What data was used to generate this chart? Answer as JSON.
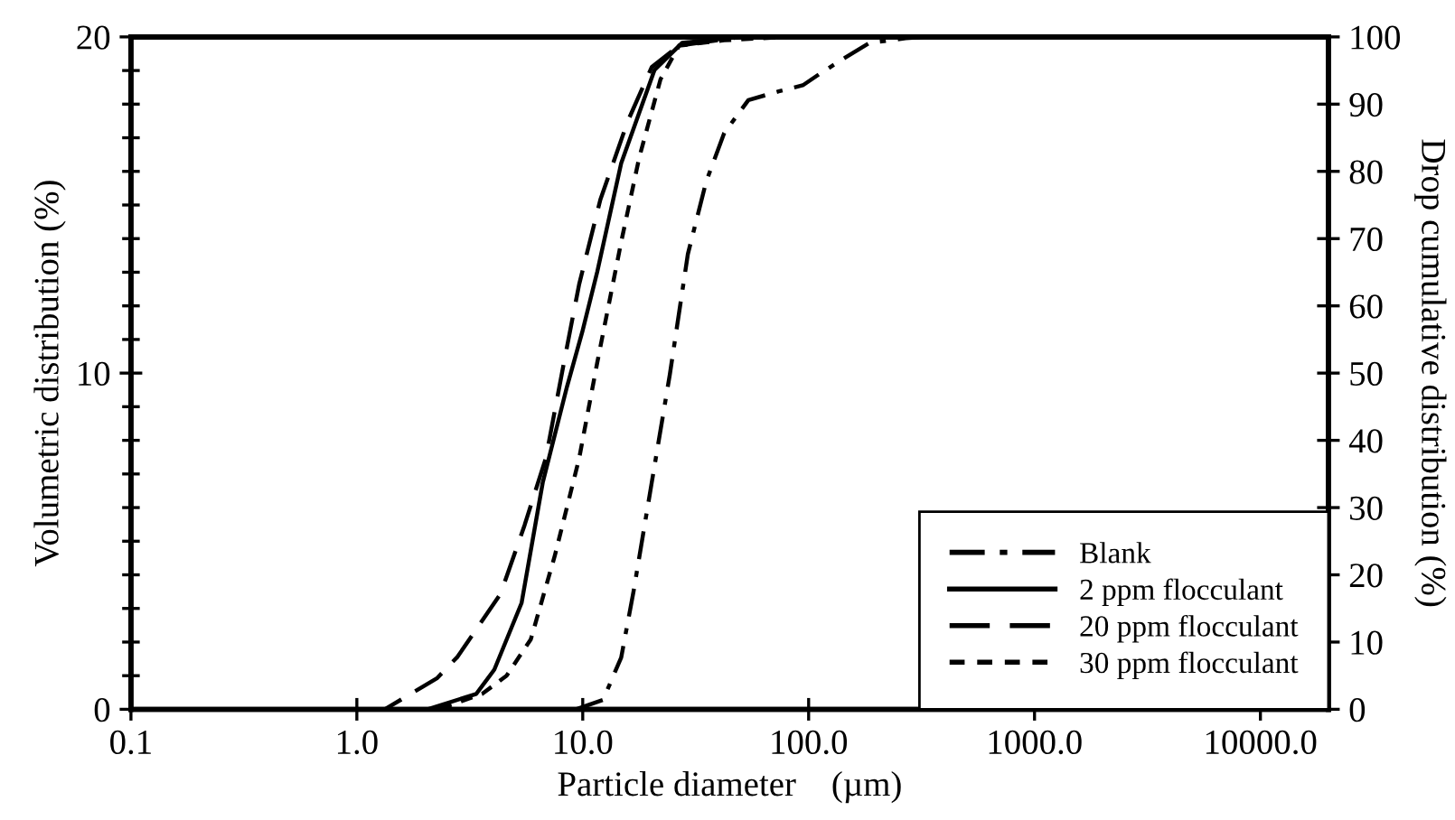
{
  "chart_data": {
    "type": "line",
    "xlabel": "Particle diameter    (µm)",
    "ylabel": "Volumetric distribution (%)",
    "y2label": "Drop cumulative distribution (%)",
    "log": "x",
    "xlim": [
      0.1,
      20000
    ],
    "xticks": [
      0.1,
      {
        "value": 1,
        "label": "1.0"
      },
      {
        "value": 10,
        "label": "10.0"
      },
      {
        "value": 100,
        "label": "100.0"
      },
      {
        "value": 1000,
        "label": "1000.0"
      },
      {
        "value": 10000,
        "label": "10000.0"
      }
    ],
    "ylim": [
      0,
      20
    ],
    "yticks": [
      0,
      10,
      20
    ],
    "y2lim": [
      0,
      100
    ],
    "y2ticks": [
      0,
      10,
      20,
      30,
      40,
      50,
      60,
      70,
      80,
      90,
      100
    ],
    "legend": "bottom right",
    "grid": false,
    "marker": "none",
    "series": [
      {
        "name": "Blank",
        "color": "#000000",
        "axis": "y2",
        "line_style": "dashdot",
        "x": [
          9.35,
          12.3,
          14.8,
          16.8,
          20.2,
          24.3,
          29.2,
          35.2,
          42.3,
          54.1,
          73.7,
          94.2,
          113,
          145,
          186,
          269,
          324,
          20000
        ],
        "values": [
          0,
          1.4,
          7.7,
          17.6,
          33.7,
          49.8,
          67.7,
          78.5,
          85.7,
          90.6,
          91.9,
          92.8,
          94.6,
          96.9,
          99.1,
          99.8,
          100,
          100
        ]
      },
      {
        "name": "2 ppm flocculant",
        "color": "#000000",
        "axis": "y2",
        "line_style": "solid",
        "x": [
          0.1,
          2.06,
          3.38,
          4.06,
          5.36,
          6.65,
          8.52,
          9.95,
          11.6,
          14.8,
          20.8,
          27.5,
          50,
          20000
        ],
        "values": [
          0,
          0,
          2.3,
          5.9,
          15.8,
          33.7,
          48.0,
          56.1,
          65.1,
          81.2,
          95.1,
          99.1,
          100,
          100
        ]
      },
      {
        "name": "20 ppm flocculant",
        "color": "#000000",
        "axis": "y2",
        "line_style": "dashed",
        "x": [
          0.1,
          1.33,
          2.26,
          2.79,
          4.33,
          5.53,
          6.87,
          8.26,
          9.64,
          11.97,
          15.8,
          20.2,
          26.7,
          50,
          20000
        ],
        "values": [
          0,
          0,
          4.6,
          7.8,
          17.2,
          27.4,
          37.4,
          51.6,
          63.2,
          75.8,
          87.4,
          95.5,
          98.7,
          100,
          100
        ]
      },
      {
        "name": "30 ppm flocculant",
        "color": "#000000",
        "axis": "y2",
        "line_style": "dotted",
        "x": [
          0.1,
          2.3,
          3.59,
          4.6,
          5.89,
          7.53,
          9.64,
          11.6,
          14.8,
          17.8,
          22.1,
          26.7,
          42.3,
          80,
          20000
        ],
        "values": [
          0,
          0,
          2.3,
          5.0,
          10.4,
          22.9,
          37.3,
          51.6,
          69.5,
          82.1,
          93.7,
          98.7,
          99.5,
          100,
          100
        ]
      }
    ]
  }
}
